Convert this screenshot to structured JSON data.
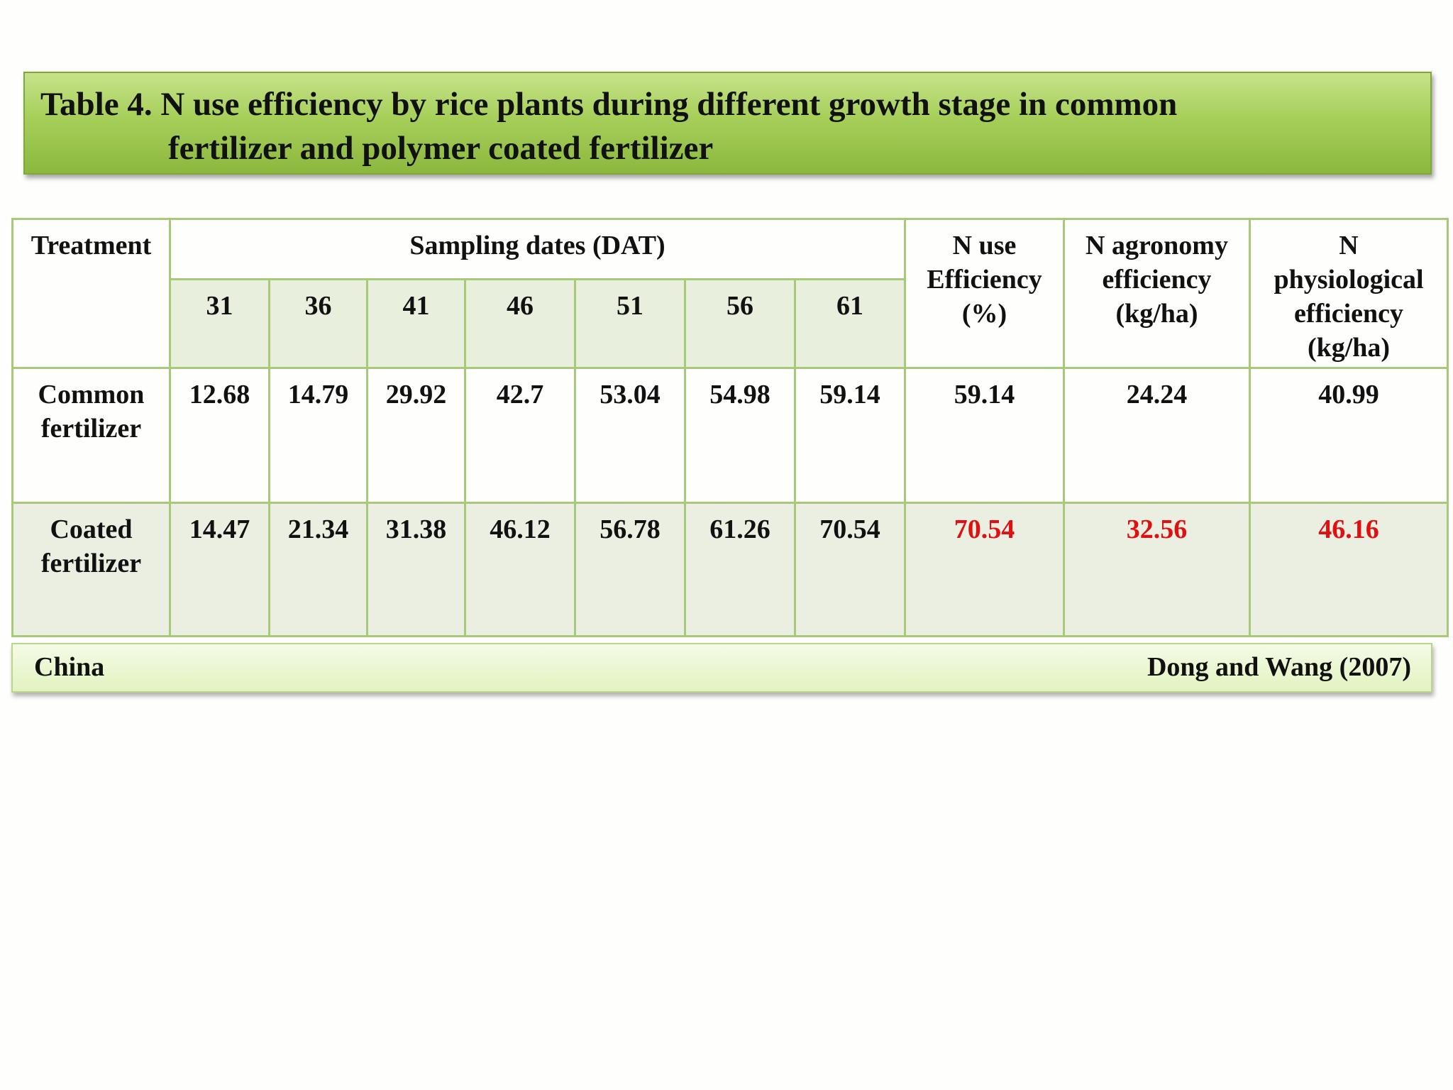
{
  "title": {
    "line1": "Table 4.  N use efficiency by rice plants during different growth stage in common",
    "line2": "fertilizer and polymer  coated fertilizer"
  },
  "table": {
    "headers": {
      "treatment": "Treatment",
      "sampling_dates": "Sampling dates (DAT)",
      "n_use_efficiency": [
        "N use",
        "Efficiency",
        "(%)"
      ],
      "n_agronomy_efficiency": [
        "N agronomy",
        "efficiency",
        "(kg/ha)"
      ],
      "n_physiological_efficiency": [
        "N",
        "physiological",
        "efficiency",
        "(kg/ha)"
      ],
      "dates": [
        "31",
        "36",
        "41",
        "46",
        "51",
        "56",
        "61"
      ]
    },
    "rows": [
      {
        "treatment": [
          "Common",
          "fertilizer"
        ],
        "values": [
          "12.68",
          "14.79",
          "29.92",
          "42.7",
          "53.04",
          "54.98",
          "59.14"
        ],
        "n_use": "59.14",
        "n_agronomy": "24.24",
        "n_physiological": "40.99"
      },
      {
        "treatment": [
          "Coated",
          "fertilizer"
        ],
        "values": [
          "14.47",
          "21.34",
          "31.38",
          "46.12",
          "56.78",
          "61.26",
          "70.54"
        ],
        "n_use": "70.54",
        "n_agronomy": "32.56",
        "n_physiological": "46.16"
      }
    ]
  },
  "footer": {
    "country": "China",
    "source": "Dong and Wang (2007)"
  },
  "colors": {
    "highlight_red": "#e01010",
    "banner_green": "#a6cf5a",
    "grid_green": "#a8c87a"
  }
}
